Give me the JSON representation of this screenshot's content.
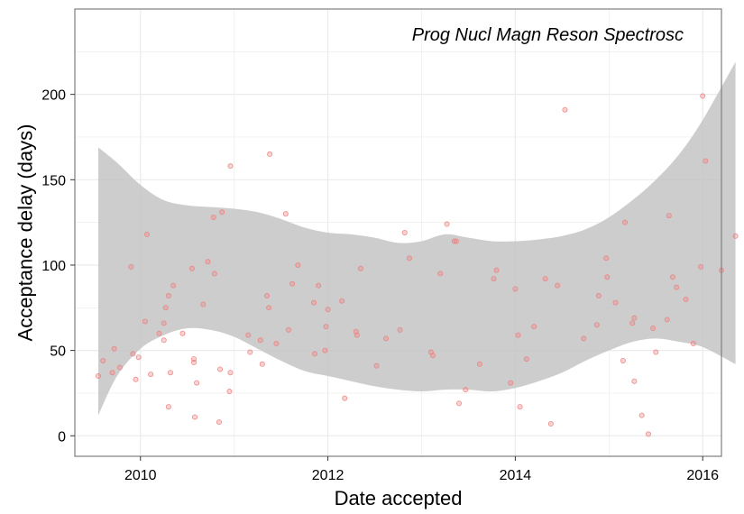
{
  "chart_data": {
    "type": "scatter",
    "title": "Prog Nucl Magn Reson Spectrosc",
    "xlabel": "Date accepted",
    "ylabel": "Acceptance delay (days)",
    "xlim": [
      2009.3,
      2016.2
    ],
    "ylim": [
      -12,
      250
    ],
    "x_ticks": [
      2010,
      2012,
      2014,
      2016
    ],
    "y_ticks": [
      0,
      50,
      100,
      150,
      200
    ],
    "grid": true,
    "legend": "none",
    "colors": {
      "points": "#f08080",
      "band": "#c4c4c4",
      "grid": "#ebebeb",
      "border": "#7f7f7f"
    },
    "points": [
      {
        "x": 2009.55,
        "y": 35
      },
      {
        "x": 2009.6,
        "y": 44
      },
      {
        "x": 2009.7,
        "y": 37
      },
      {
        "x": 2009.72,
        "y": 51
      },
      {
        "x": 2009.78,
        "y": 40
      },
      {
        "x": 2009.9,
        "y": 99
      },
      {
        "x": 2009.92,
        "y": 48
      },
      {
        "x": 2009.95,
        "y": 33
      },
      {
        "x": 2009.98,
        "y": 46
      },
      {
        "x": 2010.05,
        "y": 67
      },
      {
        "x": 2010.07,
        "y": 118
      },
      {
        "x": 2010.11,
        "y": 36
      },
      {
        "x": 2010.2,
        "y": 60
      },
      {
        "x": 2010.25,
        "y": 56
      },
      {
        "x": 2010.25,
        "y": 66
      },
      {
        "x": 2010.27,
        "y": 75
      },
      {
        "x": 2010.3,
        "y": 82
      },
      {
        "x": 2010.3,
        "y": 17
      },
      {
        "x": 2010.32,
        "y": 37
      },
      {
        "x": 2010.35,
        "y": 88
      },
      {
        "x": 2010.45,
        "y": 60
      },
      {
        "x": 2010.55,
        "y": 98
      },
      {
        "x": 2010.57,
        "y": 45
      },
      {
        "x": 2010.57,
        "y": 43
      },
      {
        "x": 2010.58,
        "y": 11
      },
      {
        "x": 2010.6,
        "y": 31
      },
      {
        "x": 2010.67,
        "y": 77
      },
      {
        "x": 2010.72,
        "y": 102
      },
      {
        "x": 2010.78,
        "y": 128
      },
      {
        "x": 2010.79,
        "y": 95
      },
      {
        "x": 2010.84,
        "y": 8
      },
      {
        "x": 2010.85,
        "y": 39
      },
      {
        "x": 2010.87,
        "y": 131
      },
      {
        "x": 2010.95,
        "y": 26
      },
      {
        "x": 2010.96,
        "y": 158
      },
      {
        "x": 2010.96,
        "y": 37
      },
      {
        "x": 2011.15,
        "y": 59
      },
      {
        "x": 2011.17,
        "y": 49
      },
      {
        "x": 2011.28,
        "y": 56
      },
      {
        "x": 2011.3,
        "y": 42
      },
      {
        "x": 2011.35,
        "y": 82
      },
      {
        "x": 2011.37,
        "y": 75
      },
      {
        "x": 2011.38,
        "y": 165
      },
      {
        "x": 2011.45,
        "y": 54
      },
      {
        "x": 2011.55,
        "y": 130
      },
      {
        "x": 2011.58,
        "y": 62
      },
      {
        "x": 2011.62,
        "y": 89
      },
      {
        "x": 2011.68,
        "y": 100
      },
      {
        "x": 2011.85,
        "y": 78
      },
      {
        "x": 2011.86,
        "y": 48
      },
      {
        "x": 2011.9,
        "y": 88
      },
      {
        "x": 2011.97,
        "y": 50
      },
      {
        "x": 2011.98,
        "y": 64
      },
      {
        "x": 2012.0,
        "y": 74
      },
      {
        "x": 2012.15,
        "y": 79
      },
      {
        "x": 2012.18,
        "y": 22
      },
      {
        "x": 2012.3,
        "y": 61
      },
      {
        "x": 2012.31,
        "y": 59
      },
      {
        "x": 2012.35,
        "y": 98
      },
      {
        "x": 2012.52,
        "y": 41
      },
      {
        "x": 2012.62,
        "y": 57
      },
      {
        "x": 2012.77,
        "y": 62
      },
      {
        "x": 2012.82,
        "y": 119
      },
      {
        "x": 2012.87,
        "y": 104
      },
      {
        "x": 2013.1,
        "y": 49
      },
      {
        "x": 2013.12,
        "y": 47
      },
      {
        "x": 2013.2,
        "y": 95
      },
      {
        "x": 2013.27,
        "y": 124
      },
      {
        "x": 2013.35,
        "y": 114
      },
      {
        "x": 2013.37,
        "y": 114
      },
      {
        "x": 2013.4,
        "y": 19
      },
      {
        "x": 2013.47,
        "y": 27
      },
      {
        "x": 2013.62,
        "y": 42
      },
      {
        "x": 2013.77,
        "y": 92
      },
      {
        "x": 2013.8,
        "y": 97
      },
      {
        "x": 2013.95,
        "y": 31
      },
      {
        "x": 2014.0,
        "y": 86
      },
      {
        "x": 2014.03,
        "y": 59
      },
      {
        "x": 2014.05,
        "y": 17
      },
      {
        "x": 2014.12,
        "y": 45
      },
      {
        "x": 2014.2,
        "y": 64
      },
      {
        "x": 2014.32,
        "y": 92
      },
      {
        "x": 2014.38,
        "y": 7
      },
      {
        "x": 2014.45,
        "y": 88
      },
      {
        "x": 2014.53,
        "y": 191
      },
      {
        "x": 2014.73,
        "y": 57
      },
      {
        "x": 2014.87,
        "y": 65
      },
      {
        "x": 2014.89,
        "y": 82
      },
      {
        "x": 2014.97,
        "y": 104
      },
      {
        "x": 2014.98,
        "y": 93
      },
      {
        "x": 2015.07,
        "y": 78
      },
      {
        "x": 2015.15,
        "y": 44
      },
      {
        "x": 2015.17,
        "y": 125
      },
      {
        "x": 2015.25,
        "y": 66
      },
      {
        "x": 2015.27,
        "y": 69
      },
      {
        "x": 2015.27,
        "y": 32
      },
      {
        "x": 2015.35,
        "y": 12
      },
      {
        "x": 2015.42,
        "y": 1
      },
      {
        "x": 2015.47,
        "y": 63
      },
      {
        "x": 2015.5,
        "y": 49
      },
      {
        "x": 2015.62,
        "y": 68
      },
      {
        "x": 2015.64,
        "y": 129
      },
      {
        "x": 2015.68,
        "y": 93
      },
      {
        "x": 2015.72,
        "y": 87
      },
      {
        "x": 2015.82,
        "y": 80
      },
      {
        "x": 2015.9,
        "y": 54
      },
      {
        "x": 2015.98,
        "y": 99
      },
      {
        "x": 2016.0,
        "y": 199
      },
      {
        "x": 2016.03,
        "y": 161
      },
      {
        "x": 2016.2,
        "y": 97
      },
      {
        "x": 2016.35,
        "y": 117
      }
    ],
    "smooth_band": {
      "x": [
        2009.55,
        2009.75,
        2010.0,
        2010.25,
        2010.5,
        2010.75,
        2011.0,
        2011.25,
        2011.5,
        2011.75,
        2012.0,
        2012.25,
        2012.5,
        2012.75,
        2013.0,
        2013.25,
        2013.5,
        2013.75,
        2014.0,
        2014.25,
        2014.5,
        2014.75,
        2015.0,
        2015.25,
        2015.5,
        2015.75,
        2016.0,
        2016.35
      ],
      "upper": [
        169,
        160,
        147,
        138,
        135,
        134,
        133,
        131,
        127,
        122,
        119,
        118,
        116,
        113,
        114,
        118,
        116,
        114,
        114,
        115,
        117,
        121,
        128,
        138,
        150,
        165,
        185,
        219
      ],
      "lower": [
        12,
        35,
        51,
        59,
        63,
        62,
        58,
        51,
        44,
        38,
        35,
        32,
        29,
        27,
        26,
        27,
        27,
        26,
        28,
        32,
        37,
        44,
        50,
        55,
        57,
        55,
        52,
        42
      ]
    }
  }
}
